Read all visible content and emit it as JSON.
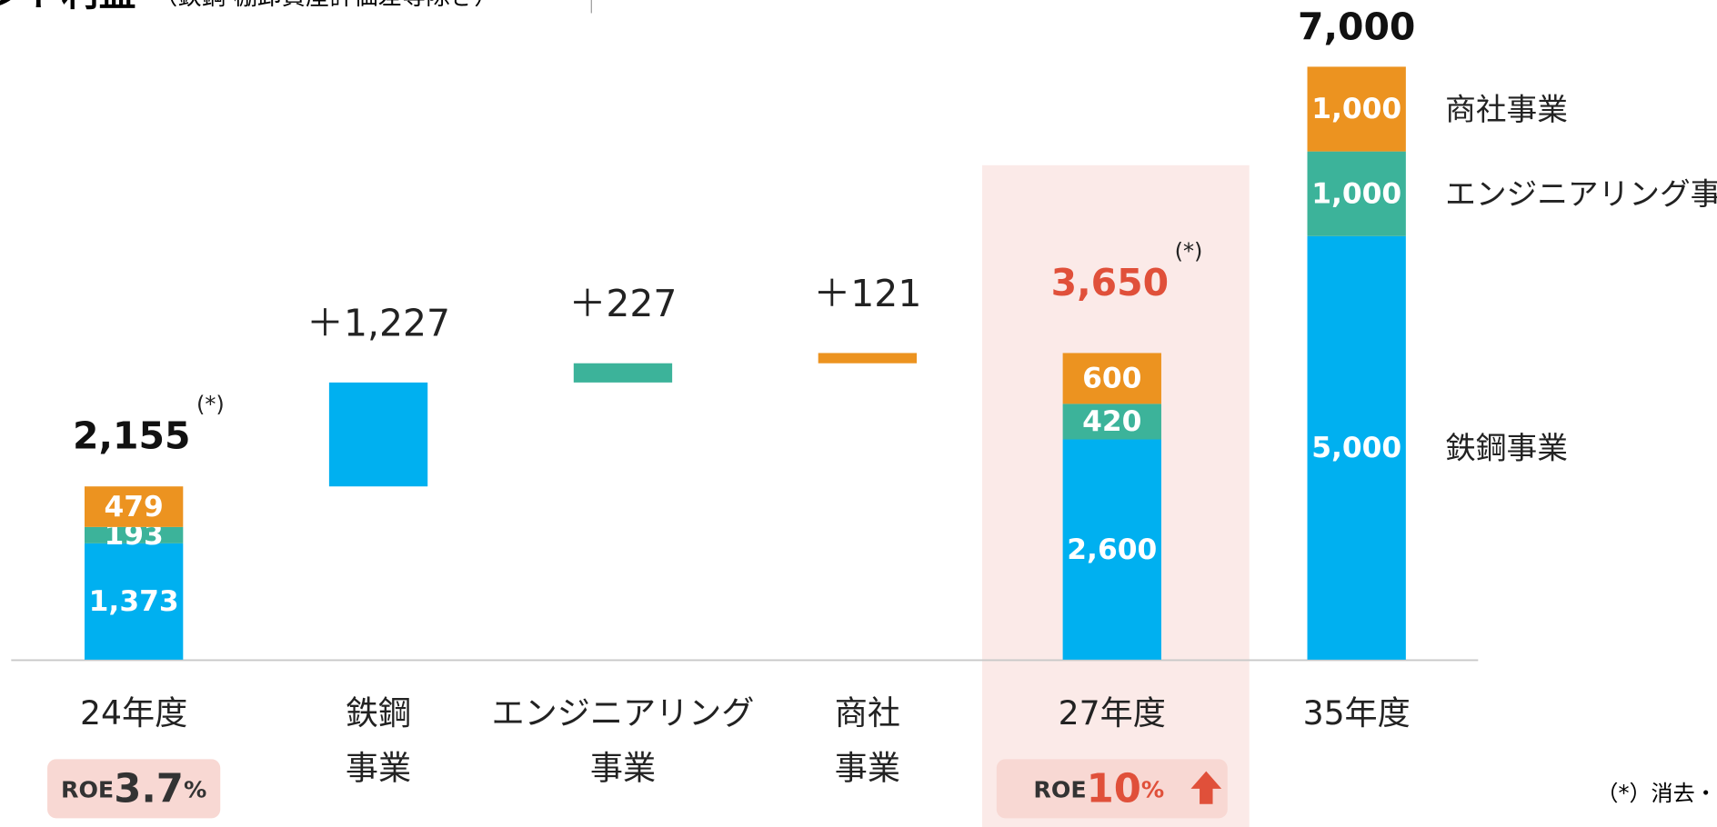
{
  "chart_data": {
    "type": "waterfall",
    "title": "ント利益",
    "subtitle": "（鉄鋼 棚卸資産評価差等除き）",
    "categories": [
      [
        "24年度"
      ],
      [
        "鉄鋼",
        "事業"
      ],
      [
        "エンジニアリング",
        "事業"
      ],
      [
        "商社",
        "事業"
      ],
      [
        "27年度"
      ],
      [
        "35年度"
      ]
    ],
    "measures": [
      "absolute",
      "relative",
      "relative",
      "relative",
      "absolute",
      "absolute"
    ],
    "series": [
      {
        "name": "鉄鋼事業",
        "color": "#00b0f0",
        "values": [
          1373,
          1227,
          null,
          null,
          2600,
          5000
        ],
        "value_labels": [
          "1,373",
          "＋1,227",
          null,
          null,
          "2,600",
          "5,000"
        ]
      },
      {
        "name": "エンジニアリング事業",
        "color": "#3cb39a",
        "values": [
          193,
          null,
          227,
          null,
          420,
          1000
        ],
        "value_labels": [
          "193",
          null,
          "＋227",
          null,
          "420",
          "1,000"
        ]
      },
      {
        "name": "商社事業",
        "color": "#ec9320",
        "values": [
          479,
          null,
          null,
          121,
          600,
          1000
        ],
        "value_labels": [
          "479",
          null,
          null,
          "＋121",
          "600",
          "1,000"
        ]
      }
    ],
    "totals": [
      2155,
      null,
      null,
      null,
      3650,
      7000
    ],
    "total_labels": [
      "2,155",
      null,
      null,
      null,
      "3,650",
      "7,000"
    ],
    "total_notes": [
      "(*)",
      null,
      null,
      null,
      "(*)",
      null
    ],
    "highlight_category": 4,
    "highlight_color": "#e0503a",
    "ylim": [
      0,
      7000
    ],
    "roe": [
      {
        "category": 0,
        "prefix": "ROE",
        "value": 3.7,
        "unit": "%"
      },
      {
        "category": 4,
        "prefix": "ROE",
        "value": 10,
        "unit": "%"
      }
    ],
    "footnote": "（*）消去・調整"
  }
}
